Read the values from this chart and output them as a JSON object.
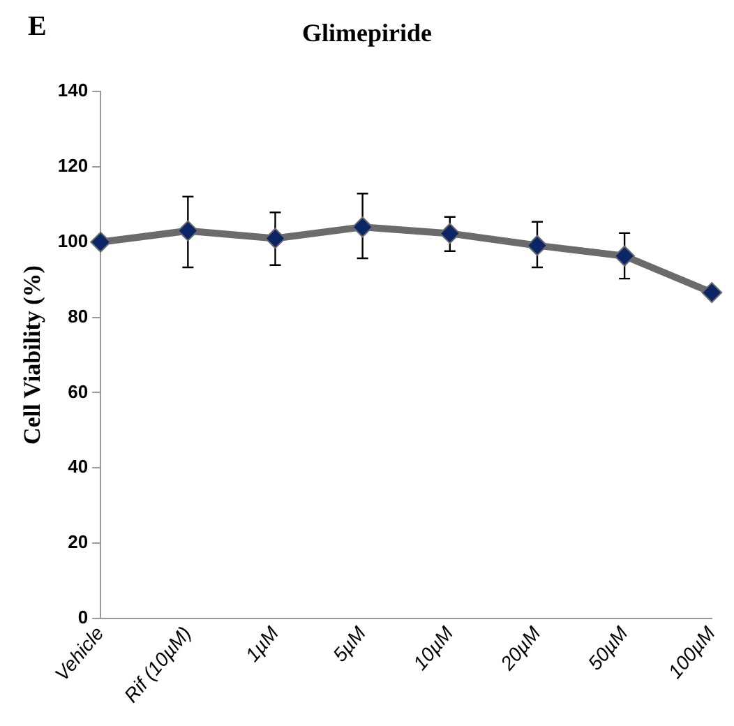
{
  "chart_data": {
    "type": "line",
    "title": "Glimepiride",
    "ylabel": "Cell Viability (%)",
    "annotations": [
      "E"
    ],
    "categories": [
      "Vehicle",
      "Rif (10µM)",
      "1µM",
      "5µM",
      "10µM",
      "20µM",
      "50µM",
      "100µM"
    ],
    "series": [
      {
        "color": "#6b6b6b",
        "values": [
          100,
          103,
          101,
          104,
          102.3,
          99.1,
          96.3,
          86.6
        ],
        "errors": [
          null,
          [
            93.3,
            112.1
          ],
          [
            93.9,
            107.9
          ],
          [
            95.7,
            112.9
          ],
          [
            97.6,
            106.7
          ],
          [
            93.3,
            105.4
          ],
          [
            90.3,
            102.4
          ],
          null
        ]
      }
    ],
    "ylim": [
      0,
      140
    ],
    "yticks": [
      0,
      20,
      40,
      60,
      80,
      100,
      120,
      140
    ],
    "grid": false,
    "legend": false,
    "marker": "diamond",
    "line_style": "solid"
  }
}
